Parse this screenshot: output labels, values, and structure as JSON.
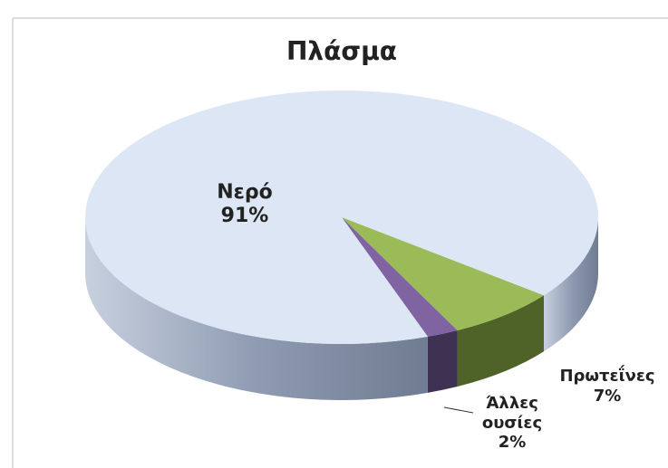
{
  "chart_data": {
    "type": "pie3d",
    "title": "Πλάσμα",
    "categories": [
      "Πρωτεΐνες",
      "Άλλες ουσίες",
      "Νερό"
    ],
    "values": [
      7,
      2,
      91
    ],
    "value_labels": [
      "7%",
      "2%",
      "91%"
    ],
    "colors": [
      "#9bbb59",
      "#8064a2",
      "#dce6f4"
    ]
  }
}
